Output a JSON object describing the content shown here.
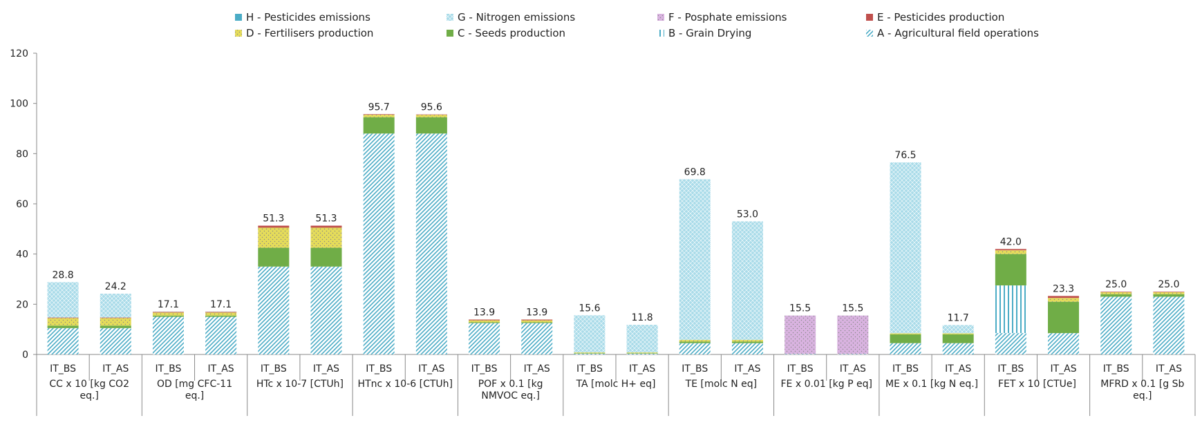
{
  "chart_data": {
    "type": "bar",
    "stacked": true,
    "ylim": [
      0,
      120
    ],
    "yticks": [
      0,
      20,
      40,
      60,
      80,
      100,
      120
    ],
    "grid": false,
    "legend_position": "top",
    "groups": [
      {
        "label": "CC x 10 [kg CO2 eq.]",
        "bars": [
          "IT_BS",
          "IT_AS"
        ]
      },
      {
        "label": "OD [mg CFC-11 eq.]",
        "bars": [
          "IT_BS",
          "IT_AS"
        ]
      },
      {
        "label": "HTc x 10-7 [CTUh]",
        "bars": [
          "IT_BS",
          "IT_AS"
        ]
      },
      {
        "label": "HTnc x 10-6 [CTUh]",
        "bars": [
          "IT_BS",
          "IT_AS"
        ]
      },
      {
        "label": "POF x 0.1 [kg NMVOC eq.]",
        "bars": [
          "IT_BS",
          "IT_AS"
        ]
      },
      {
        "label": "TA [molc H+ eq]",
        "bars": [
          "IT_BS",
          "IT_AS"
        ]
      },
      {
        "label": "TE [molc N eq]",
        "bars": [
          "IT_BS",
          "IT_AS"
        ]
      },
      {
        "label": "FE x 0.01 [kg P eq]",
        "bars": [
          "IT_BS",
          "IT_AS"
        ]
      },
      {
        "label": "ME x 0.1 [kg N eq.]",
        "bars": [
          "IT_BS",
          "IT_AS"
        ]
      },
      {
        "label": "FET x 10 [CTUe]",
        "bars": [
          "IT_BS",
          "IT_AS"
        ]
      },
      {
        "label": "MFRD x 0.1 [g Sb eq.]",
        "bars": [
          "IT_BS",
          "IT_AS"
        ]
      }
    ],
    "totals": [
      "28.8",
      "24.2",
      "17.1",
      "17.1",
      "51.3",
      "51.3",
      "95.7",
      "95.6",
      "13.9",
      "13.9",
      "15.6",
      "11.8",
      "69.8",
      "53.0",
      "15.5",
      "15.5",
      "76.5",
      "11.7",
      "42.0",
      "23.3",
      "25.0",
      "25.0"
    ],
    "series": [
      {
        "key": "A",
        "name": "A - Agricultural field operations",
        "color": "#4bacc6",
        "pattern": "diag",
        "values": [
          10.5,
          10.5,
          15.0,
          15.0,
          35.0,
          35.0,
          88.0,
          88.0,
          12.5,
          12.5,
          0.3,
          0.3,
          4.5,
          4.5,
          0.2,
          0.2,
          4.5,
          4.5,
          8.5,
          8.5,
          23.0,
          23.0
        ]
      },
      {
        "key": "B",
        "name": "B - Grain Drying",
        "color": "#4bacc6",
        "pattern": "vert",
        "values": [
          0,
          0,
          0,
          0,
          0,
          0,
          0,
          0,
          0,
          0,
          0,
          0,
          0,
          0,
          0,
          0,
          0,
          0,
          19.0,
          0,
          0,
          0
        ]
      },
      {
        "key": "C",
        "name": "C - Seeds production",
        "color": "#70ad47",
        "pattern": "solid",
        "values": [
          1.0,
          1.0,
          0.5,
          0.5,
          7.5,
          7.5,
          6.5,
          6.5,
          0.3,
          0.3,
          0.2,
          0.2,
          0.6,
          0.6,
          0,
          0,
          3.5,
          3.5,
          12.5,
          12.5,
          1.0,
          1.0
        ]
      },
      {
        "key": "D",
        "name": "D - Fertilisers production",
        "color": "#e5dc5a",
        "pattern": "dots",
        "values": [
          3.0,
          3.0,
          1.2,
          1.2,
          8.0,
          8.0,
          1.0,
          1.0,
          0.8,
          0.8,
          0.3,
          0.3,
          0.7,
          0.7,
          0,
          0,
          0.4,
          0.4,
          1.5,
          1.5,
          0.8,
          0.8
        ]
      },
      {
        "key": "E",
        "name": "E - Pesticides production",
        "color": "#c0504d",
        "pattern": "solid",
        "values": [
          0.2,
          0.2,
          0.3,
          0.3,
          0.8,
          0.8,
          0.2,
          0.1,
          0.3,
          0.3,
          0,
          0,
          0,
          0,
          0,
          0,
          0,
          0,
          0.5,
          0.8,
          0.2,
          0.2
        ]
      },
      {
        "key": "F",
        "name": "F - Posphate emissions",
        "color": "#d9b3e0",
        "pattern": "dots",
        "values": [
          0,
          0,
          0,
          0,
          0,
          0,
          0,
          0,
          0,
          0,
          0,
          0,
          0,
          0,
          15.3,
          15.3,
          0,
          0,
          0,
          0,
          0,
          0
        ]
      },
      {
        "key": "G",
        "name": "G - Nitrogen emissions",
        "color": "#a9dbe9",
        "pattern": "cross",
        "values": [
          14.1,
          9.5,
          0.1,
          0.1,
          0,
          0,
          0,
          0,
          0,
          0,
          14.8,
          11.0,
          64.0,
          47.2,
          0,
          0,
          68.1,
          3.3,
          0,
          0,
          0,
          0
        ]
      },
      {
        "key": "H",
        "name": "H - Pesticides emissions",
        "color": "#4bacc6",
        "pattern": "solid",
        "values": [
          0,
          0,
          0,
          0,
          0,
          0,
          0,
          0,
          0,
          0,
          0,
          0,
          0,
          0,
          0,
          0,
          0,
          0,
          0,
          0,
          0,
          0
        ]
      }
    ],
    "legend_order": [
      "H",
      "G",
      "F",
      "E",
      "D",
      "C",
      "B",
      "A"
    ]
  }
}
